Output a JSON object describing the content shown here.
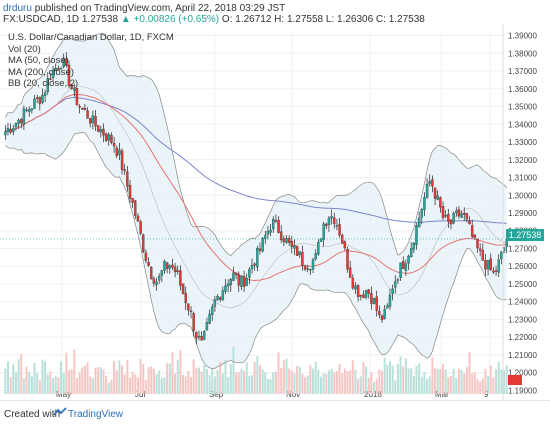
{
  "header": {
    "author": "drduru",
    "published": "published on TradingView.com, April 22, 2018 03:29 JST",
    "symbol": "FX:USDCAD, 1D",
    "last": "1.27538",
    "change": "▲ +0.00826 (+0.65%)",
    "ohlc": "O: 1.26712 H: 1.27558 L: 1.26306 C: 1.27538"
  },
  "legend": {
    "title": "U.S. Dollar/Canadian Dollar, 1D, FXCM",
    "vol": "Vol (20)",
    "ma50": "MA (50, close)",
    "ma200": "MA (200, close)",
    "bb": "BB (20, close, 2)"
  },
  "footer": {
    "created_with": "Created with",
    "brand": "TradingView"
  },
  "chart_data": {
    "type": "candlestick",
    "title": "U.S. Dollar/Canadian Dollar, 1D, FXCM",
    "x_tick_labels": [
      "May",
      "Jul",
      "Sep",
      "Nov",
      "2018",
      "Mar",
      "9"
    ],
    "y_tick_labels": [
      "1.39000",
      "1.38000",
      "1.37000",
      "1.36000",
      "1.35000",
      "1.34000",
      "1.33000",
      "1.32000",
      "1.31000",
      "1.30000",
      "1.29000",
      "1.28000",
      "1.27000",
      "1.26000",
      "1.25000",
      "1.24000",
      "1.23000",
      "1.22000",
      "1.21000",
      "1.20000",
      "1.19000"
    ],
    "ylim": [
      1.188,
      1.392
    ],
    "last_price": 1.27538,
    "last_price_label": "1.27538",
    "colors": {
      "up": "#26a69a",
      "down": "#e53935",
      "ma50": "#e57373",
      "ma200": "#7986cb",
      "bands": "#888888",
      "band_fill": "#e3eff6",
      "vol_up": "#b9e0da",
      "vol_down": "#f6c6c4"
    },
    "close_path": [
      [
        0,
        1.336
      ],
      [
        2,
        1.342
      ],
      [
        4,
        1.35
      ],
      [
        6,
        1.357
      ],
      [
        7,
        1.368
      ],
      [
        8,
        1.372
      ],
      [
        9,
        1.376
      ],
      [
        10,
        1.365
      ],
      [
        11,
        1.355
      ],
      [
        12,
        1.349
      ],
      [
        13,
        1.345
      ],
      [
        14,
        1.34
      ],
      [
        15,
        1.337
      ],
      [
        16,
        1.333
      ],
      [
        17,
        1.33
      ],
      [
        18,
        1.322
      ],
      [
        19,
        1.308
      ],
      [
        20,
        1.296
      ],
      [
        21,
        1.282
      ],
      [
        22,
        1.267
      ],
      [
        23,
        1.256
      ],
      [
        24,
        1.251
      ],
      [
        25,
        1.259
      ],
      [
        26,
        1.261
      ],
      [
        27,
        1.256
      ],
      [
        28,
        1.245
      ],
      [
        29,
        1.236
      ],
      [
        30,
        1.222
      ],
      [
        31,
        1.215
      ],
      [
        32,
        1.228
      ],
      [
        33,
        1.24
      ],
      [
        34,
        1.246
      ],
      [
        35,
        1.252
      ],
      [
        36,
        1.255
      ],
      [
        37,
        1.25
      ],
      [
        38,
        1.254
      ],
      [
        39,
        1.262
      ],
      [
        40,
        1.268
      ],
      [
        41,
        1.277
      ],
      [
        42,
        1.285
      ],
      [
        43,
        1.281
      ],
      [
        44,
        1.276
      ],
      [
        45,
        1.27
      ],
      [
        46,
        1.268
      ],
      [
        47,
        1.262
      ],
      [
        48,
        1.262
      ],
      [
        49,
        1.265
      ],
      [
        50,
        1.283
      ],
      [
        51,
        1.289
      ],
      [
        52,
        1.287
      ],
      [
        53,
        1.276
      ],
      [
        54,
        1.26
      ],
      [
        55,
        1.249
      ],
      [
        56,
        1.244
      ],
      [
        57,
        1.247
      ],
      [
        58,
        1.241
      ],
      [
        59,
        1.23
      ],
      [
        60,
        1.233
      ],
      [
        61,
        1.249
      ],
      [
        62,
        1.257
      ],
      [
        63,
        1.264
      ],
      [
        64,
        1.272
      ],
      [
        65,
        1.285
      ],
      [
        66,
        1.298
      ],
      [
        67,
        1.309
      ],
      [
        68,
        1.298
      ],
      [
        69,
        1.287
      ],
      [
        70,
        1.283
      ],
      [
        71,
        1.288
      ],
      [
        72,
        1.29
      ],
      [
        73,
        1.282
      ],
      [
        74,
        1.272
      ],
      [
        75,
        1.265
      ],
      [
        76,
        1.26
      ],
      [
        77,
        1.255
      ],
      [
        78,
        1.264
      ],
      [
        79,
        1.275
      ]
    ],
    "volume_shape": [
      0.5,
      0.7,
      0.6,
      0.8,
      0.55,
      0.65,
      0.9,
      0.5,
      0.6,
      0.7,
      0.55,
      0.75,
      0.6,
      0.5,
      0.65,
      0.8,
      0.7,
      0.6,
      0.5,
      0.4
    ]
  }
}
